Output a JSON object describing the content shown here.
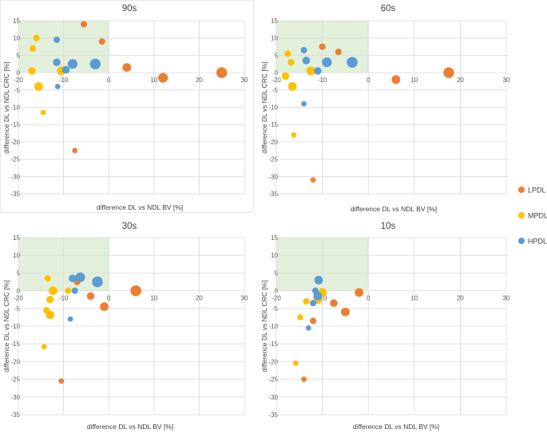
{
  "chart_data": [
    {
      "type": "scatter",
      "title": "90s",
      "xlabel": "difference DL vs NDL BV [%]",
      "ylabel": "difference DL vs NDL CRC [%]",
      "xlim": [
        -20,
        30
      ],
      "ylim": [
        -35,
        15
      ],
      "xticks": [
        "-20",
        "-10",
        "0",
        "10",
        "20",
        "30"
      ],
      "yticks": [
        "15",
        "10",
        "5",
        "0",
        "-5",
        "-10",
        "-15",
        "-20",
        "-25",
        "-30",
        "-35"
      ],
      "shaded_region": {
        "x": [
          -20,
          0
        ],
        "y": [
          0,
          15
        ]
      },
      "series": [
        {
          "name": "LPDL",
          "points": [
            {
              "x": -5.5,
              "y": 14,
              "s": 3
            },
            {
              "x": -1.5,
              "y": 9,
              "s": 3
            },
            {
              "x": 4,
              "y": 1.5,
              "s": 4
            },
            {
              "x": 12,
              "y": -1.5,
              "s": 4.5
            },
            {
              "x": 25,
              "y": 0,
              "s": 5
            },
            {
              "x": -7.5,
              "y": -22.5,
              "s": 2.5
            }
          ]
        },
        {
          "name": "MPDL",
          "points": [
            {
              "x": -16,
              "y": 10,
              "s": 3
            },
            {
              "x": -16.8,
              "y": 7,
              "s": 3
            },
            {
              "x": -17,
              "y": 0.5,
              "s": 3.5
            },
            {
              "x": -10.5,
              "y": 0.5,
              "s": 4
            },
            {
              "x": -15.5,
              "y": -4,
              "s": 4
            },
            {
              "x": -14.5,
              "y": -11.5,
              "s": 2.5
            }
          ]
        },
        {
          "name": "HPDL",
          "points": [
            {
              "x": -11.5,
              "y": 9.5,
              "s": 3
            },
            {
              "x": -11.5,
              "y": 3,
              "s": 3.5
            },
            {
              "x": -8,
              "y": 2.5,
              "s": 4.5
            },
            {
              "x": -3,
              "y": 2.5,
              "s": 5
            },
            {
              "x": -9.5,
              "y": 0.8,
              "s": 3.5
            },
            {
              "x": -11.3,
              "y": -4,
              "s": 2.5
            }
          ]
        }
      ]
    },
    {
      "type": "scatter",
      "title": "60s",
      "xlabel": "difference DL vs NDL BV [%]",
      "ylabel": "difference DL vs NDL CRC [%]",
      "xlim": [
        -20,
        30
      ],
      "ylim": [
        -35,
        15
      ],
      "xticks": [
        "-20",
        "-10",
        "0",
        "10",
        "20",
        "30"
      ],
      "yticks": [
        "15",
        "10",
        "5",
        "0",
        "-5",
        "-10",
        "-15",
        "-20",
        "-25",
        "-30",
        "-35"
      ],
      "shaded_region": {
        "x": [
          -20,
          0
        ],
        "y": [
          0,
          15
        ]
      },
      "series": [
        {
          "name": "LPDL",
          "points": [
            {
              "x": -10,
              "y": 7.5,
              "s": 3
            },
            {
              "x": -6.5,
              "y": 6,
              "s": 3
            },
            {
              "x": 6,
              "y": -2,
              "s": 4
            },
            {
              "x": 17.5,
              "y": 0,
              "s": 5
            },
            {
              "x": -12,
              "y": -31,
              "s": 2.5
            }
          ]
        },
        {
          "name": "MPDL",
          "points": [
            {
              "x": -17.5,
              "y": 5.5,
              "s": 3
            },
            {
              "x": -16.8,
              "y": 3,
              "s": 3
            },
            {
              "x": -18,
              "y": -1,
              "s": 3.5
            },
            {
              "x": -12.5,
              "y": 0.5,
              "s": 4
            },
            {
              "x": -16.5,
              "y": -4,
              "s": 4
            },
            {
              "x": -16.2,
              "y": -18,
              "s": 2.5
            }
          ]
        },
        {
          "name": "HPDL",
          "points": [
            {
              "x": -14,
              "y": 6.5,
              "s": 3
            },
            {
              "x": -13.5,
              "y": 3.5,
              "s": 3.5
            },
            {
              "x": -9,
              "y": 3,
              "s": 4.5
            },
            {
              "x": -3.5,
              "y": 3,
              "s": 5
            },
            {
              "x": -11,
              "y": 0.5,
              "s": 3.5
            },
            {
              "x": -14,
              "y": -9,
              "s": 2.5
            }
          ]
        }
      ]
    },
    {
      "type": "scatter",
      "title": "30s",
      "xlabel": "difference DL vs NDL BV [%]",
      "ylabel": "difference DL vs NDL CRC [%]",
      "xlim": [
        -20,
        30
      ],
      "ylim": [
        -35,
        15
      ],
      "xticks": [
        "-20",
        "-10",
        "0",
        "10",
        "20",
        "30"
      ],
      "yticks": [
        "15",
        "10",
        "5",
        "0",
        "-5",
        "-10",
        "-15",
        "-20",
        "-25",
        "-30",
        "-35"
      ],
      "shaded_region": {
        "x": [
          -20,
          0
        ],
        "y": [
          0,
          15
        ]
      },
      "series": [
        {
          "name": "LPDL",
          "points": [
            {
              "x": -7,
              "y": 2.5,
              "s": 3
            },
            {
              "x": -4,
              "y": -1.5,
              "s": 3.5
            },
            {
              "x": -1,
              "y": -4.5,
              "s": 4
            },
            {
              "x": 6,
              "y": 0,
              "s": 5
            },
            {
              "x": -10.5,
              "y": -25.5,
              "s": 2.5
            }
          ]
        },
        {
          "name": "MPDL",
          "points": [
            {
              "x": -13.5,
              "y": 3.5,
              "s": 3
            },
            {
              "x": -12.3,
              "y": 0,
              "s": 4
            },
            {
              "x": -13,
              "y": -2.5,
              "s": 3.5
            },
            {
              "x": -13.8,
              "y": -5.5,
              "s": 3
            },
            {
              "x": -13,
              "y": -6.8,
              "s": 4
            },
            {
              "x": -9,
              "y": 0,
              "s": 3
            },
            {
              "x": -14.3,
              "y": -15.8,
              "s": 2.5
            }
          ]
        },
        {
          "name": "HPDL",
          "points": [
            {
              "x": -8,
              "y": 3.5,
              "s": 3.5
            },
            {
              "x": -6.3,
              "y": 3.8,
              "s": 4.5
            },
            {
              "x": -2.5,
              "y": 2.5,
              "s": 5
            },
            {
              "x": -7.5,
              "y": 0,
              "s": 3
            },
            {
              "x": -8.5,
              "y": -8,
              "s": 2.5
            }
          ]
        }
      ]
    },
    {
      "type": "scatter",
      "title": "10s",
      "xlabel": "difference DL vs NDL BV [%]",
      "ylabel": "difference DL vs NDL CRC [%]",
      "xlim": [
        -20,
        30
      ],
      "ylim": [
        -35,
        15
      ],
      "xticks": [
        "-20",
        "-10",
        "0",
        "10",
        "20",
        "30"
      ],
      "yticks": [
        "15",
        "10",
        "5",
        "0",
        "-5",
        "-10",
        "-15",
        "-20",
        "-25",
        "-30",
        "-35"
      ],
      "shaded_region": {
        "x": [
          -20,
          0
        ],
        "y": [
          0,
          15
        ]
      },
      "series": [
        {
          "name": "LPDL",
          "points": [
            {
              "x": -2,
              "y": -0.5,
              "s": 4
            },
            {
              "x": -7.5,
              "y": -3.5,
              "s": 3.5
            },
            {
              "x": -5,
              "y": -6,
              "s": 4
            },
            {
              "x": -12,
              "y": -8.5,
              "s": 3
            },
            {
              "x": -14,
              "y": -25,
              "s": 2.5
            }
          ]
        },
        {
          "name": "MPDL",
          "points": [
            {
              "x": -10,
              "y": -0.5,
              "s": 4
            },
            {
              "x": -11,
              "y": -2.5,
              "s": 4
            },
            {
              "x": -13.5,
              "y": -3,
              "s": 3
            },
            {
              "x": -14.8,
              "y": -7.5,
              "s": 2.8
            },
            {
              "x": -15.8,
              "y": -20.5,
              "s": 2.5
            }
          ]
        },
        {
          "name": "HPDL",
          "points": [
            {
              "x": -10.8,
              "y": 3,
              "s": 4
            },
            {
              "x": -11.5,
              "y": 0,
              "s": 3
            },
            {
              "x": -11,
              "y": -1.5,
              "s": 4
            },
            {
              "x": -12,
              "y": -3.5,
              "s": 3
            },
            {
              "x": -13,
              "y": -10.5,
              "s": 2.5
            }
          ]
        }
      ]
    }
  ],
  "legend": [
    {
      "label": "LPDL",
      "color": "#ED7D31"
    },
    {
      "label": "MPDL",
      "color": "#FFC000"
    },
    {
      "label": "HPDL",
      "color": "#5B9BD5"
    }
  ],
  "colors": {
    "shade": "#E2EFDA",
    "grid": "#D9D9D9",
    "panel_border": "#E7E6E6"
  }
}
